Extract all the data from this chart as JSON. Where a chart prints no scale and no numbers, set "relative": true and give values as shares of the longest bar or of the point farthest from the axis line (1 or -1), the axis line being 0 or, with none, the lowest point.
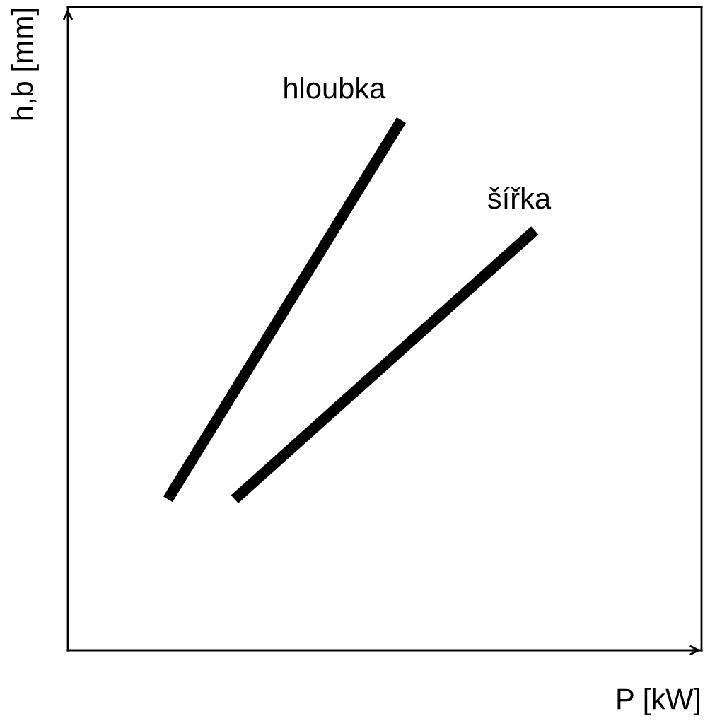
{
  "chart_data": {
    "type": "line",
    "relative": true,
    "xlabel": "P [kW]",
    "ylabel": "h,b [mm]",
    "legend": false,
    "categories": [
      null,
      null,
      null,
      null,
      null,
      null,
      null,
      null,
      null,
      null,
      null,
      null,
      null,
      null,
      null,
      null,
      null,
      null,
      null
    ],
    "series": [
      {
        "name": "hloubka",
        "color": "#000000",
        "values": [
          null,
          null,
          null,
          0.285,
          null,
          null,
          null,
          null,
          null,
          null,
          1.0,
          null,
          null,
          null,
          null,
          null,
          null,
          null,
          null
        ]
      },
      {
        "name": "šířka",
        "color": "#000000",
        "values": [
          null,
          null,
          null,
          null,
          null,
          0.285,
          null,
          null,
          null,
          null,
          null,
          null,
          null,
          null,
          0.792,
          null,
          null,
          null,
          null
        ]
      }
    ]
  }
}
